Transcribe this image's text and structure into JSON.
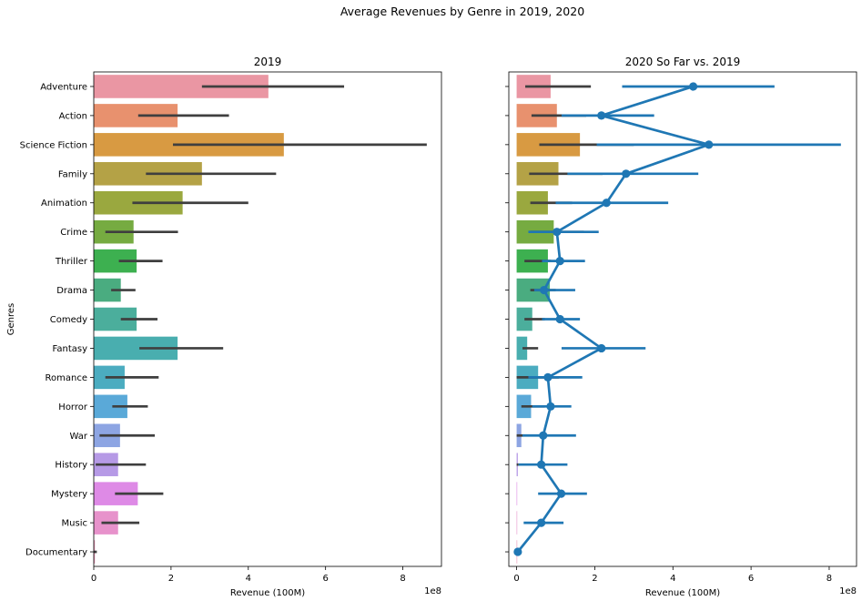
{
  "figure": {
    "suptitle": "Average Revenues by Genre in 2019, 2020"
  },
  "chart_data": [
    {
      "type": "bar",
      "orientation": "horizontal",
      "title": "2019",
      "xlabel": "Revenue (100M)",
      "ylabel": "Genres",
      "x_offset_text": "1e8",
      "xlim": [
        0,
        900000000
      ],
      "xticks": [
        0,
        200000000,
        400000000,
        600000000,
        800000000
      ],
      "xtick_labels": [
        "0",
        "2",
        "4",
        "6",
        "8"
      ],
      "categories": [
        "Adventure",
        "Action",
        "Science Fiction",
        "Family",
        "Animation",
        "Crime",
        "Thriller",
        "Drama",
        "Comedy",
        "Fantasy",
        "Romance",
        "Horror",
        "War",
        "History",
        "Mystery",
        "Music",
        "Documentary"
      ],
      "colors": [
        "#ea96a3",
        "#e8916e",
        "#d89a42",
        "#b4a246",
        "#9aa83f",
        "#76ab41",
        "#3db050",
        "#4aac80",
        "#4bae9c",
        "#49aeaf",
        "#4bacc0",
        "#5aa9d8",
        "#8da5e3",
        "#b69ae6",
        "#de8ae6",
        "#e792cb",
        "#ea94b4"
      ],
      "values": [
        452000000,
        217000000,
        492000000,
        280000000,
        230000000,
        103000000,
        111000000,
        70000000,
        111000000,
        217000000,
        80000000,
        87000000,
        68000000,
        63000000,
        114000000,
        63000000,
        3000000
      ],
      "ci_low": [
        280000000,
        115000000,
        205000000,
        135000000,
        100000000,
        30000000,
        65000000,
        45000000,
        70000000,
        118000000,
        30000000,
        48000000,
        15000000,
        5000000,
        55000000,
        20000000,
        0
      ],
      "ci_high": [
        648000000,
        350000000,
        862000000,
        472000000,
        400000000,
        218000000,
        178000000,
        108000000,
        165000000,
        335000000,
        168000000,
        140000000,
        158000000,
        135000000,
        180000000,
        118000000,
        8000000
      ]
    },
    {
      "type": "bar+pointplot",
      "orientation": "horizontal",
      "title": "2020 So Far vs. 2019",
      "xlabel": "Revenue (100M)",
      "x_offset_text": "1e8",
      "xlim": [
        -20000000,
        870000000
      ],
      "xticks": [
        0,
        200000000,
        400000000,
        600000000,
        800000000
      ],
      "xtick_labels": [
        "0",
        "2",
        "4",
        "6",
        "8"
      ],
      "categories": [
        "Adventure",
        "Action",
        "Science Fiction",
        "Family",
        "Animation",
        "Crime",
        "Thriller",
        "Drama",
        "Comedy",
        "Fantasy",
        "Romance",
        "Horror",
        "War",
        "History",
        "Mystery",
        "Music",
        "Documentary"
      ],
      "series": [
        {
          "kind": "bar",
          "values": [
            87000000,
            103000000,
            162000000,
            107000000,
            80000000,
            95000000,
            80000000,
            85000000,
            40000000,
            27000000,
            55000000,
            37000000,
            12000000,
            3000000,
            0,
            0,
            0
          ],
          "ci_low": [
            22000000,
            38000000,
            58000000,
            32000000,
            35000000,
            35000000,
            20000000,
            35000000,
            20000000,
            15000000,
            0,
            12000000,
            0,
            0,
            0,
            0,
            0
          ],
          "ci_high": [
            190000000,
            178000000,
            300000000,
            220000000,
            142000000,
            172000000,
            88000000,
            100000000,
            72000000,
            55000000,
            108000000,
            72000000,
            16000000,
            5000000,
            0,
            0,
            0
          ]
        },
        {
          "kind": "point",
          "color": "#1f77b4",
          "values": [
            452000000,
            217000000,
            492000000,
            280000000,
            230000000,
            103000000,
            111000000,
            70000000,
            111000000,
            217000000,
            80000000,
            87000000,
            68000000,
            63000000,
            114000000,
            63000000,
            3000000
          ],
          "ci_low": [
            270000000,
            115000000,
            205000000,
            130000000,
            100000000,
            30000000,
            65000000,
            45000000,
            65000000,
            115000000,
            30000000,
            40000000,
            15000000,
            5000000,
            55000000,
            18000000,
            0
          ],
          "ci_high": [
            660000000,
            352000000,
            830000000,
            465000000,
            388000000,
            210000000,
            175000000,
            150000000,
            162000000,
            330000000,
            168000000,
            140000000,
            152000000,
            130000000,
            180000000,
            120000000,
            5000000
          ]
        }
      ]
    }
  ]
}
